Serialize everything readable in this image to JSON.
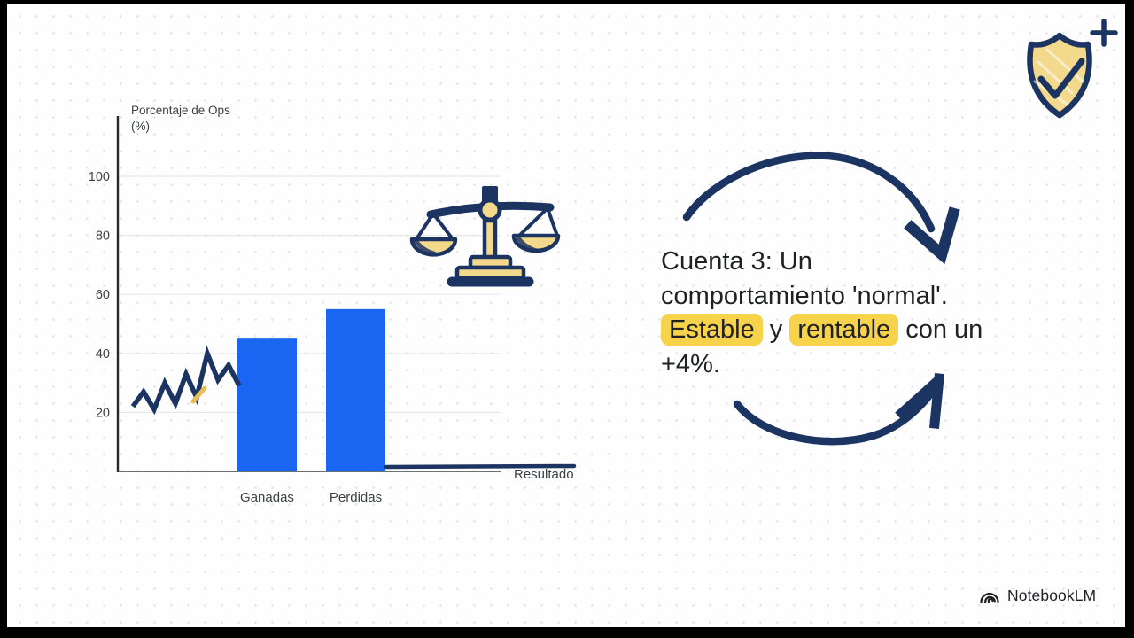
{
  "chart_data": {
    "type": "bar",
    "title": "Porcentaje de Ops",
    "title_unit": "(%)",
    "x_axis_label": "Resultado",
    "categories": [
      "Ganadas",
      "Perdidas"
    ],
    "values": [
      45,
      55
    ],
    "yticks": [
      20,
      40,
      60,
      80,
      100
    ],
    "ylim": [
      0,
      110
    ],
    "grid": "horizontal",
    "bar_color": "#1a66f2",
    "trend_line": {
      "color": "#1c3462",
      "values_pct": [
        22,
        27,
        21,
        30,
        23,
        33,
        25,
        40,
        31,
        36,
        29
      ]
    },
    "flat_result_line_pct": 1.5
  },
  "caption": {
    "text_color": "#202124",
    "highlight_color": "#f7d24b",
    "segments": [
      {
        "text": "Cuenta 3: Un",
        "highlight": false,
        "br": true
      },
      {
        "text": "comportamiento 'normal'.",
        "highlight": false,
        "br": true
      },
      {
        "text": "Estable",
        "highlight": true,
        "br": false
      },
      {
        "text": " y ",
        "highlight": false,
        "br": false
      },
      {
        "text": "rentable",
        "highlight": true,
        "br": false
      },
      {
        "text": " con un",
        "highlight": false,
        "br": true
      },
      {
        "text": "+4%.",
        "highlight": false,
        "br": false
      }
    ]
  },
  "icons": {
    "balance_scale": "balance-scale-icon",
    "shield_check": "shield-check-icon",
    "plus": "plus-icon",
    "arrow_top": "curved-arrow-down-right-icon",
    "arrow_bottom": "curved-arrow-up-right-icon",
    "logo_swirl": "notebooklm-logo-icon"
  },
  "colors": {
    "ink_navy": "#1c3462",
    "accent_yellow": "#f3d98b",
    "bar_blue": "#1a66f2"
  },
  "branding": {
    "logo_text": "NotebookLM"
  }
}
